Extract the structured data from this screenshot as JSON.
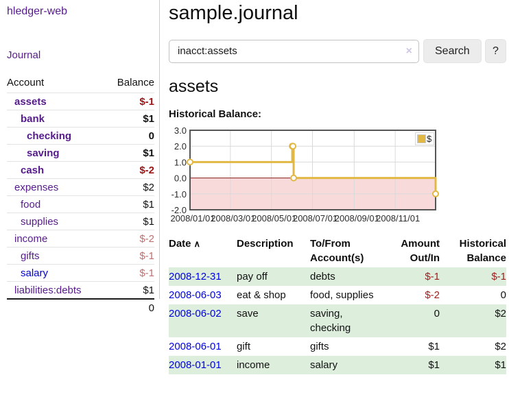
{
  "app": {
    "title": "hledger-web",
    "nav_journal": "Journal"
  },
  "colors": {
    "link_visited": "#551a8b",
    "link_unvisited": "#0000dd",
    "negative_strong": "#9c1414",
    "negative_light": "#bd6f6f",
    "table_negative": "#9c2020",
    "row_shade_green": "#ddeedd",
    "chart_line_gold": "#e2b844",
    "chart_negative_region": "#f8dada",
    "chart_zero_line": "#8b1a1a"
  },
  "sidebar": {
    "header": {
      "account": "Account",
      "balance": "Balance"
    },
    "accounts": [
      {
        "name": "assets",
        "depth": 1,
        "balance": "$-1",
        "bold": true,
        "balance_tone": "neg-strong",
        "unvisited": false
      },
      {
        "name": "bank",
        "depth": 2,
        "balance": "$1",
        "bold": true,
        "balance_tone": "normal",
        "unvisited": false
      },
      {
        "name": "checking",
        "depth": 3,
        "balance": "0",
        "bold": true,
        "balance_tone": "normal",
        "unvisited": false
      },
      {
        "name": "saving",
        "depth": 3,
        "balance": "$1",
        "bold": true,
        "balance_tone": "normal",
        "unvisited": false
      },
      {
        "name": "cash",
        "depth": 2,
        "balance": "$-2",
        "bold": true,
        "balance_tone": "neg-strong",
        "unvisited": false
      },
      {
        "name": "expenses",
        "depth": 1,
        "balance": "$2",
        "bold": false,
        "balance_tone": "normal",
        "unvisited": false
      },
      {
        "name": "food",
        "depth": 2,
        "balance": "$1",
        "bold": false,
        "balance_tone": "normal",
        "unvisited": false
      },
      {
        "name": "supplies",
        "depth": 2,
        "balance": "$1",
        "bold": false,
        "balance_tone": "normal",
        "unvisited": false
      },
      {
        "name": "income",
        "depth": 1,
        "balance": "$-2",
        "bold": false,
        "balance_tone": "neg-light",
        "unvisited": false
      },
      {
        "name": "gifts",
        "depth": 2,
        "balance": "$-1",
        "bold": false,
        "balance_tone": "neg-light",
        "unvisited": false
      },
      {
        "name": "salary",
        "depth": 2,
        "balance": "$-1",
        "bold": false,
        "balance_tone": "neg-light",
        "unvisited": true
      },
      {
        "name": "liabilities:debts",
        "depth": 1,
        "balance": "$1",
        "bold": false,
        "balance_tone": "normal",
        "unvisited": false
      }
    ],
    "total": "0"
  },
  "header": {
    "title": "sample.journal"
  },
  "search": {
    "value": "inacct:assets",
    "clear_icon": "×",
    "button_label": "Search",
    "help_label": "?"
  },
  "account_page": {
    "heading": "assets",
    "chart_label": "Historical Balance:"
  },
  "chart_data": {
    "type": "line",
    "subtype": "step-after",
    "title": "Historical Balance:",
    "xlabel": "",
    "ylabel": "",
    "xlim": [
      "2008/01/01",
      "2008/12/31"
    ],
    "ylim": [
      -2,
      3
    ],
    "y_ticks": [
      3.0,
      2.0,
      1.0,
      0.0,
      -1.0,
      -2.0
    ],
    "x_ticks": [
      "2008/01/01",
      "2008/03/01",
      "2008/05/01",
      "2008/07/01",
      "2008/09/01",
      "2008/11/01"
    ],
    "grid": true,
    "legend_position": "top-right",
    "negative_region_color": "#f8dada",
    "zero_line_color": "#8b1a1a",
    "series": [
      {
        "name": "$",
        "color": "#e2b844",
        "points": [
          [
            "2008/01/01",
            1
          ],
          [
            "2008/06/01",
            2
          ],
          [
            "2008/06/02",
            2
          ],
          [
            "2008/06/03",
            0
          ],
          [
            "2008/12/31",
            -1
          ]
        ]
      }
    ]
  },
  "register_table": {
    "columns": [
      "Date",
      "Description",
      "To/From Account(s)",
      "Amount Out/In",
      "Historical Balance"
    ],
    "sort_icon": "∧",
    "rows": [
      {
        "date": "2008-12-31",
        "description": "pay off",
        "accounts": "debts",
        "amount": "$-1",
        "balance": "$-1",
        "shaded": true
      },
      {
        "date": "2008-06-03",
        "description": "eat & shop",
        "accounts": "food, supplies",
        "amount": "$-2",
        "balance": "0",
        "shaded": false
      },
      {
        "date": "2008-06-02",
        "description": "save",
        "accounts": "saving, checking",
        "amount": "0",
        "balance": "$2",
        "shaded": true
      },
      {
        "date": "2008-06-01",
        "description": "gift",
        "accounts": "gifts",
        "amount": "$1",
        "balance": "$2",
        "shaded": false
      },
      {
        "date": "2008-01-01",
        "description": "income",
        "accounts": "salary",
        "amount": "$1",
        "balance": "$1",
        "shaded": true
      }
    ]
  }
}
